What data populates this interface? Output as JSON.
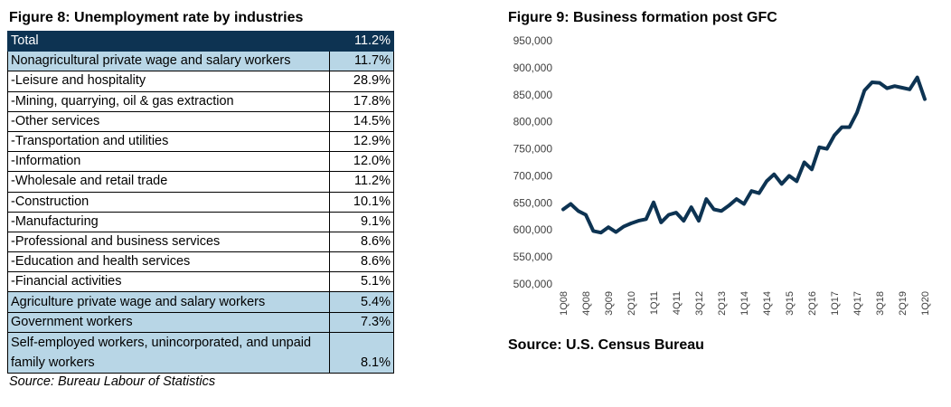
{
  "table": {
    "title": "Figure 8: Unemployment rate by industries",
    "source": "Source: Bureau Labour of Statistics",
    "rows": [
      {
        "label": "Total",
        "value": "11.2%",
        "style": "dark"
      },
      {
        "label": "Nonagricultural private wage and salary workers",
        "value": "11.7%",
        "style": "blue"
      },
      {
        "label": "-Leisure and hospitality",
        "value": "28.9%",
        "style": "plain"
      },
      {
        "label": "-Mining, quarrying, oil & gas extraction",
        "value": "17.8%",
        "style": "plain"
      },
      {
        "label": "-Other services",
        "value": "14.5%",
        "style": "plain"
      },
      {
        "label": "-Transportation and utilities",
        "value": "12.9%",
        "style": "plain"
      },
      {
        "label": "-Information",
        "value": "12.0%",
        "style": "plain"
      },
      {
        "label": "-Wholesale and retail trade",
        "value": "11.2%",
        "style": "plain"
      },
      {
        "label": "-Construction",
        "value": "10.1%",
        "style": "plain"
      },
      {
        "label": "-Manufacturing",
        "value": "9.1%",
        "style": "plain"
      },
      {
        "label": "-Professional and business services",
        "value": "8.6%",
        "style": "plain"
      },
      {
        "label": "-Education and health services",
        "value": "8.6%",
        "style": "plain"
      },
      {
        "label": "-Financial activities",
        "value": "5.1%",
        "style": "plain"
      },
      {
        "label": "Agriculture private wage and salary workers",
        "value": "5.4%",
        "style": "blue"
      },
      {
        "label": "Government workers",
        "value": "7.3%",
        "style": "blue"
      },
      {
        "label": "Self-employed workers, unincorporated, and unpaid family workers",
        "value": "8.1%",
        "style": "blue",
        "tall": true
      }
    ]
  },
  "colors": {
    "header_dark": "#0d3352",
    "row_blue": "#b8d6e6",
    "line": "#0d3352"
  },
  "chart_data": {
    "type": "line",
    "title": "Figure 9: Business formation post GFC",
    "source": "Source: U.S. Census Bureau",
    "xlabel": "",
    "ylabel": "",
    "ylim": [
      500000,
      950000
    ],
    "yticks": [
      500000,
      550000,
      600000,
      650000,
      700000,
      750000,
      800000,
      850000,
      900000,
      950000
    ],
    "ytick_labels": [
      "500,000",
      "550,000",
      "600,000",
      "650,000",
      "700,000",
      "750,000",
      "800,000",
      "850,000",
      "900,000",
      "950,000"
    ],
    "grid": false,
    "x": [
      "1Q08",
      "2Q08",
      "3Q08",
      "4Q08",
      "1Q09",
      "2Q09",
      "3Q09",
      "4Q09",
      "1Q10",
      "2Q10",
      "3Q10",
      "4Q10",
      "1Q11",
      "2Q11",
      "3Q11",
      "4Q11",
      "1Q12",
      "2Q12",
      "3Q12",
      "4Q12",
      "1Q13",
      "2Q13",
      "3Q13",
      "4Q13",
      "1Q14",
      "2Q14",
      "3Q14",
      "4Q14",
      "1Q15",
      "2Q15",
      "3Q15",
      "4Q15",
      "1Q16",
      "2Q16",
      "3Q16",
      "4Q16",
      "1Q17",
      "2Q17",
      "3Q17",
      "4Q17",
      "1Q18",
      "2Q18",
      "3Q18",
      "4Q18",
      "1Q19",
      "2Q19",
      "3Q19",
      "4Q19",
      "1Q20"
    ],
    "xtick_labels": [
      "1Q08",
      "4Q08",
      "3Q09",
      "2Q10",
      "1Q11",
      "4Q11",
      "3Q12",
      "2Q13",
      "1Q14",
      "4Q14",
      "3Q15",
      "2Q16",
      "1Q17",
      "4Q17",
      "3Q18",
      "2Q19",
      "1Q20"
    ],
    "series": [
      {
        "values": [
          638000,
          648000,
          635000,
          628000,
          598000,
          595000,
          605000,
          596000,
          606000,
          612000,
          617000,
          620000,
          651000,
          614000,
          628000,
          632000,
          617000,
          642000,
          617000,
          657000,
          638000,
          635000,
          645000,
          657000,
          648000,
          672000,
          668000,
          690000,
          703000,
          685000,
          700000,
          690000,
          725000,
          712000,
          753000,
          750000,
          775000,
          790000,
          790000,
          817000,
          858000,
          873000,
          872000,
          862000,
          866000,
          863000,
          860000,
          882000,
          842000
        ]
      }
    ]
  }
}
